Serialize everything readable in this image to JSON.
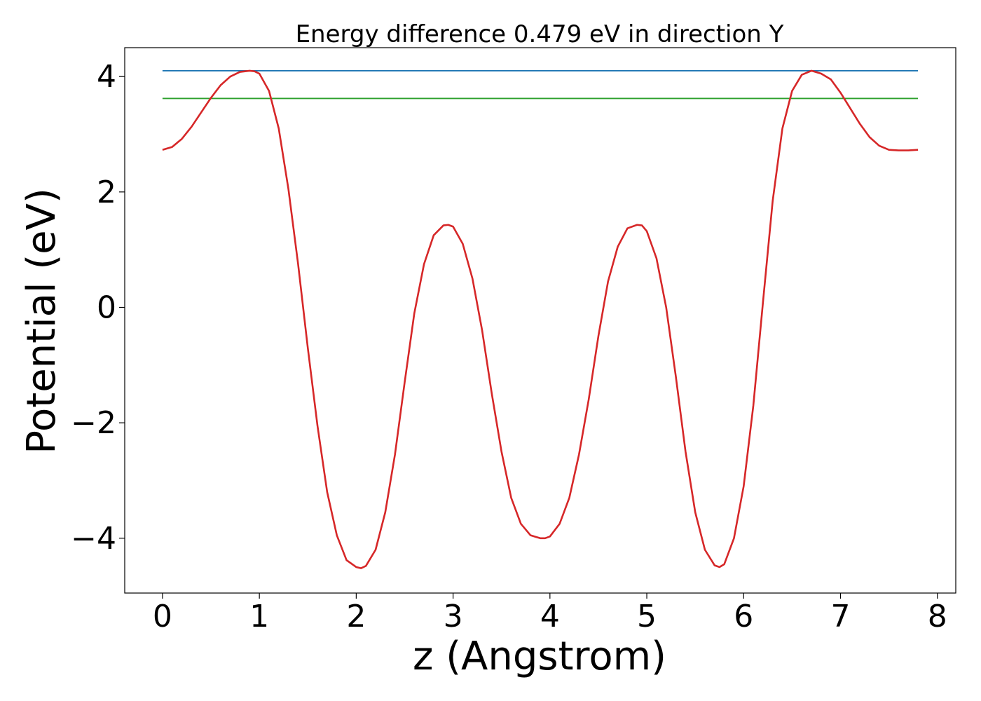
{
  "chart_data": {
    "type": "line",
    "title": "Energy difference 0.479 eV in direction Y",
    "xlabel": "z (Angstrom)",
    "ylabel": "Potential (eV)",
    "xlim": [
      -0.39,
      8.19
    ],
    "ylim": [
      -4.95,
      4.5
    ],
    "xticks": [
      0,
      1,
      2,
      3,
      4,
      5,
      6,
      7,
      8
    ],
    "yticks": [
      -4,
      -2,
      0,
      2,
      4
    ],
    "xtick_labels": [
      "0",
      "1",
      "2",
      "3",
      "4",
      "5",
      "6",
      "7",
      "8"
    ],
    "ytick_labels": [
      "−4",
      "−2",
      "0",
      "2",
      "4"
    ],
    "grid": false,
    "legend": "none",
    "series": [
      {
        "color": "#1f77b4",
        "x": [
          0,
          7.8
        ],
        "y": [
          4.1,
          4.1
        ]
      },
      {
        "color": "#2ca02c",
        "x": [
          0,
          7.8
        ],
        "y": [
          3.62,
          3.62
        ]
      },
      {
        "color": "#d62728",
        "x": [
          0.0,
          0.1,
          0.2,
          0.3,
          0.4,
          0.5,
          0.6,
          0.7,
          0.8,
          0.9,
          0.95,
          1.0,
          1.1,
          1.2,
          1.3,
          1.4,
          1.5,
          1.6,
          1.7,
          1.8,
          1.9,
          2.0,
          2.05,
          2.1,
          2.2,
          2.3,
          2.4,
          2.5,
          2.6,
          2.7,
          2.8,
          2.9,
          2.95,
          3.0,
          3.1,
          3.2,
          3.3,
          3.4,
          3.5,
          3.6,
          3.7,
          3.8,
          3.9,
          3.95,
          4.0,
          4.1,
          4.2,
          4.3,
          4.4,
          4.5,
          4.6,
          4.7,
          4.8,
          4.9,
          4.95,
          5.0,
          5.1,
          5.2,
          5.3,
          5.4,
          5.5,
          5.6,
          5.7,
          5.75,
          5.8,
          5.9,
          6.0,
          6.1,
          6.2,
          6.3,
          6.4,
          6.5,
          6.6,
          6.7,
          6.8,
          6.9,
          7.0,
          7.1,
          7.2,
          7.3,
          7.4,
          7.5,
          7.6,
          7.7,
          7.8
        ],
        "y": [
          2.73,
          2.78,
          2.92,
          3.13,
          3.38,
          3.63,
          3.85,
          4.0,
          4.08,
          4.1,
          4.09,
          4.05,
          3.75,
          3.1,
          2.05,
          0.75,
          -0.7,
          -2.05,
          -3.2,
          -3.95,
          -4.38,
          -4.5,
          -4.52,
          -4.48,
          -4.2,
          -3.55,
          -2.55,
          -1.3,
          -0.1,
          0.75,
          1.25,
          1.42,
          1.43,
          1.4,
          1.1,
          0.5,
          -0.4,
          -1.5,
          -2.5,
          -3.3,
          -3.75,
          -3.95,
          -4.0,
          -4.0,
          -3.97,
          -3.75,
          -3.3,
          -2.55,
          -1.6,
          -0.5,
          0.45,
          1.05,
          1.37,
          1.43,
          1.42,
          1.32,
          0.85,
          0.0,
          -1.2,
          -2.5,
          -3.55,
          -4.2,
          -4.47,
          -4.5,
          -4.45,
          -4.0,
          -3.1,
          -1.7,
          0.1,
          1.85,
          3.1,
          3.75,
          4.03,
          4.1,
          4.05,
          3.95,
          3.72,
          3.45,
          3.18,
          2.95,
          2.8,
          2.73,
          2.72,
          2.72,
          2.73
        ]
      }
    ]
  }
}
